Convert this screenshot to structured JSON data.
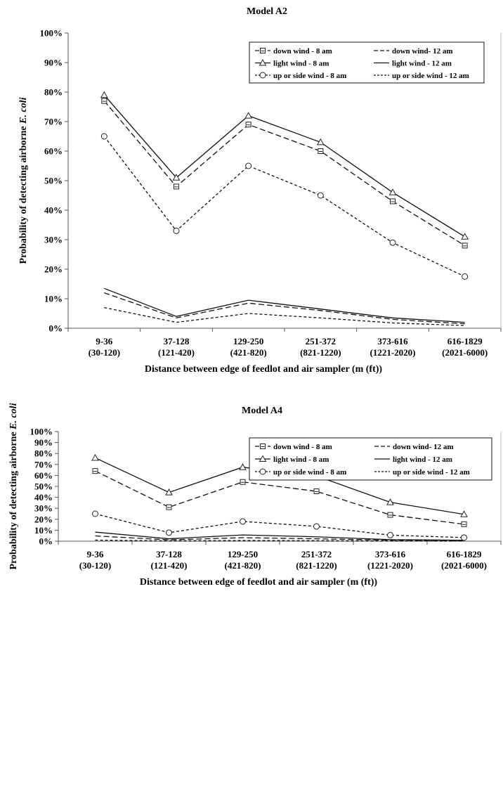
{
  "chart_data": [
    {
      "type": "line",
      "title": "Model A2",
      "xlabel": "Distance between edge of feedlot and air sampler (m (ft))",
      "ylabel_prefix": "Probability of detecting airborne ",
      "ylabel_italic": "E. coli",
      "categories": [
        [
          "9-36",
          "(30-120)"
        ],
        [
          "37-128",
          "(121-420)"
        ],
        [
          "129-250",
          "(421-820)"
        ],
        [
          "251-372",
          "(821-1220)"
        ],
        [
          "373-616",
          "(1221-2020)"
        ],
        [
          "616-1829",
          "(2021-6000)"
        ]
      ],
      "ylim": [
        0,
        100
      ],
      "yticks": [
        "0%",
        "10%",
        "20%",
        "30%",
        "40%",
        "50%",
        "60%",
        "70%",
        "80%",
        "90%",
        "100%"
      ],
      "legend_position": "top-right",
      "series": [
        {
          "name": "down wind - 8 am",
          "values": [
            77,
            48,
            69,
            60,
            43,
            28
          ],
          "dash": "long",
          "marker": "square"
        },
        {
          "name": "down wind- 12 am",
          "values": [
            12,
            3.5,
            8.5,
            6,
            3,
            1.5
          ],
          "dash": "long",
          "marker": "none"
        },
        {
          "name": "light wind - 8 am",
          "values": [
            79,
            51,
            72,
            63,
            46,
            31
          ],
          "dash": "solid",
          "marker": "triangle"
        },
        {
          "name": "light wind - 12 am",
          "values": [
            13.5,
            4,
            9.5,
            6.5,
            3.5,
            2
          ],
          "dash": "solid",
          "marker": "none"
        },
        {
          "name": "up or side wind - 8 am",
          "values": [
            65,
            33,
            55,
            45,
            29,
            17.5
          ],
          "dash": "short",
          "marker": "circle"
        },
        {
          "name": "up or side wind - 12 am",
          "values": [
            7,
            2,
            5,
            3.5,
            1.8,
            0.9
          ],
          "dash": "short",
          "marker": "none"
        }
      ]
    },
    {
      "type": "line",
      "title": "Model A4",
      "xlabel": "Distance between edge of feedlot and air sampler (m (ft))",
      "ylabel_prefix": "Probability of detecting airborne ",
      "ylabel_italic": "E. coli",
      "categories": [
        [
          "9-36",
          "(30-120)"
        ],
        [
          "37-128",
          "(121-420)"
        ],
        [
          "129-250",
          "(421-820)"
        ],
        [
          "251-372",
          "(821-1220)"
        ],
        [
          "373-616",
          "(1221-2020)"
        ],
        [
          "616-1829",
          "(2021-6000)"
        ]
      ],
      "ylim": [
        0,
        100
      ],
      "yticks": [
        "0%",
        "10%",
        "20%",
        "30%",
        "40%",
        "50%",
        "60%",
        "70%",
        "80%",
        "90%",
        "100%"
      ],
      "legend_position": "top-right",
      "series": [
        {
          "name": "down wind - 8 am",
          "values": [
            64,
            31,
            54,
            45.5,
            24,
            15.5
          ],
          "dash": "long",
          "marker": "square"
        },
        {
          "name": "down wind- 12 am",
          "values": [
            4.8,
            1.2,
            3.2,
            2.2,
            0.9,
            0.5
          ],
          "dash": "long",
          "marker": "none"
        },
        {
          "name": "light wind - 8 am",
          "values": [
            76,
            44.5,
            67.5,
            59.5,
            35.5,
            24.5
          ],
          "dash": "solid",
          "marker": "triangle"
        },
        {
          "name": "light wind - 12 am",
          "values": [
            8.3,
            2.2,
            5.7,
            4,
            1.4,
            0.9
          ],
          "dash": "solid",
          "marker": "none"
        },
        {
          "name": "up or side wind - 8 am",
          "values": [
            25,
            7.8,
            18,
            13.5,
            5.5,
            3.3
          ],
          "dash": "short",
          "marker": "circle"
        },
        {
          "name": "up or side wind - 12 am",
          "values": [
            1,
            0.3,
            0.7,
            0.5,
            0.2,
            0.1
          ],
          "dash": "short",
          "marker": "none"
        }
      ]
    }
  ]
}
